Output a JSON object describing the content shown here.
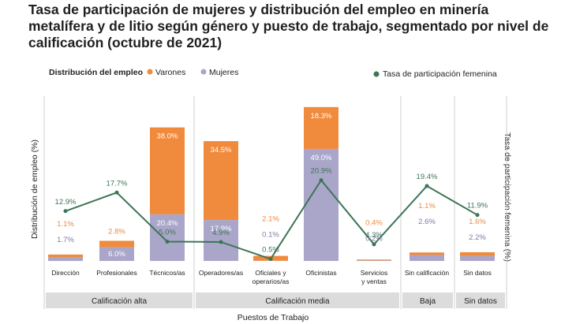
{
  "title": "Tasa de participación de mujeres y distribución del empleo en minería metalífera y de litio según género y puesto de trabajo, segmentado por nivel de calificación (octubre de 2021)",
  "colors": {
    "varones": "#f08a3c",
    "mujeres": "#a9a6c9",
    "tasa": "#3d7555",
    "group_band": "#dcdcdc",
    "divider": "#cfcfcf"
  },
  "chart_data": {
    "type": "bar",
    "stacked": true,
    "title": "Tasa de participación de mujeres y distribución del empleo en minería metalífera y de litio según género y puesto de trabajo, segmentado por nivel de calificación (octubre de 2021)",
    "legend_title": "Distribución del empleo",
    "legend_position": "top",
    "xlabel": "Puestos de Trabajo",
    "ylabel": "Distribución de empleo (%)",
    "y2label": "Tasa de participación femenina (%)",
    "categories": [
      "Dirección",
      "Profesionales",
      "Técnicos/as",
      "Operadores/as",
      "Oficiales y operarios/as",
      "Oficinistas",
      "Servicios y ventas",
      "Sin calificación",
      "Sin datos"
    ],
    "groups": [
      {
        "label": "Calificación alta",
        "categories": [
          "Dirección",
          "Profesionales",
          "Técnicos/as"
        ]
      },
      {
        "label": "Calificación media",
        "categories": [
          "Operadores/as",
          "Oficiales y operarios/as",
          "Oficinistas",
          "Servicios y ventas"
        ]
      },
      {
        "label": "Baja",
        "categories": [
          "Sin calificación"
        ]
      },
      {
        "label": "Sin datos",
        "categories": [
          "Sin datos"
        ]
      }
    ],
    "series": [
      {
        "name": "Mujeres",
        "type": "bar",
        "values": [
          1.7,
          6.0,
          20.4,
          17.9,
          0.1,
          49.0,
          0.2,
          2.6,
          2.2
        ],
        "labels": [
          "1.7%",
          "6.0%",
          "20.4%",
          "17.9%",
          "0.1%",
          "49.0%",
          "0.2%",
          "2.6%",
          "2.2%"
        ]
      },
      {
        "name": "Varones",
        "type": "bar",
        "values": [
          1.1,
          2.8,
          38.0,
          34.5,
          2.1,
          18.3,
          0.4,
          1.1,
          1.6
        ],
        "labels": [
          "1.1%",
          "2.8%",
          "38.0%",
          "34.5%",
          "2.1%",
          "18.3%",
          "0.4%",
          "1.1%",
          "1.6%"
        ]
      },
      {
        "name": "Tasa de participación femenina",
        "type": "line",
        "values": [
          12.9,
          17.7,
          5.0,
          4.9,
          0.5,
          20.9,
          4.3,
          19.4,
          11.9
        ],
        "labels": [
          "12.9%",
          "17.7%",
          "5.0%",
          "4.9%",
          "0.5%",
          "20.9%",
          "4.3%",
          "19.4%",
          "11.9%"
        ]
      }
    ],
    "ylim": [
      0,
      70
    ],
    "y2lim": [
      0,
      45
    ],
    "grid": false
  }
}
